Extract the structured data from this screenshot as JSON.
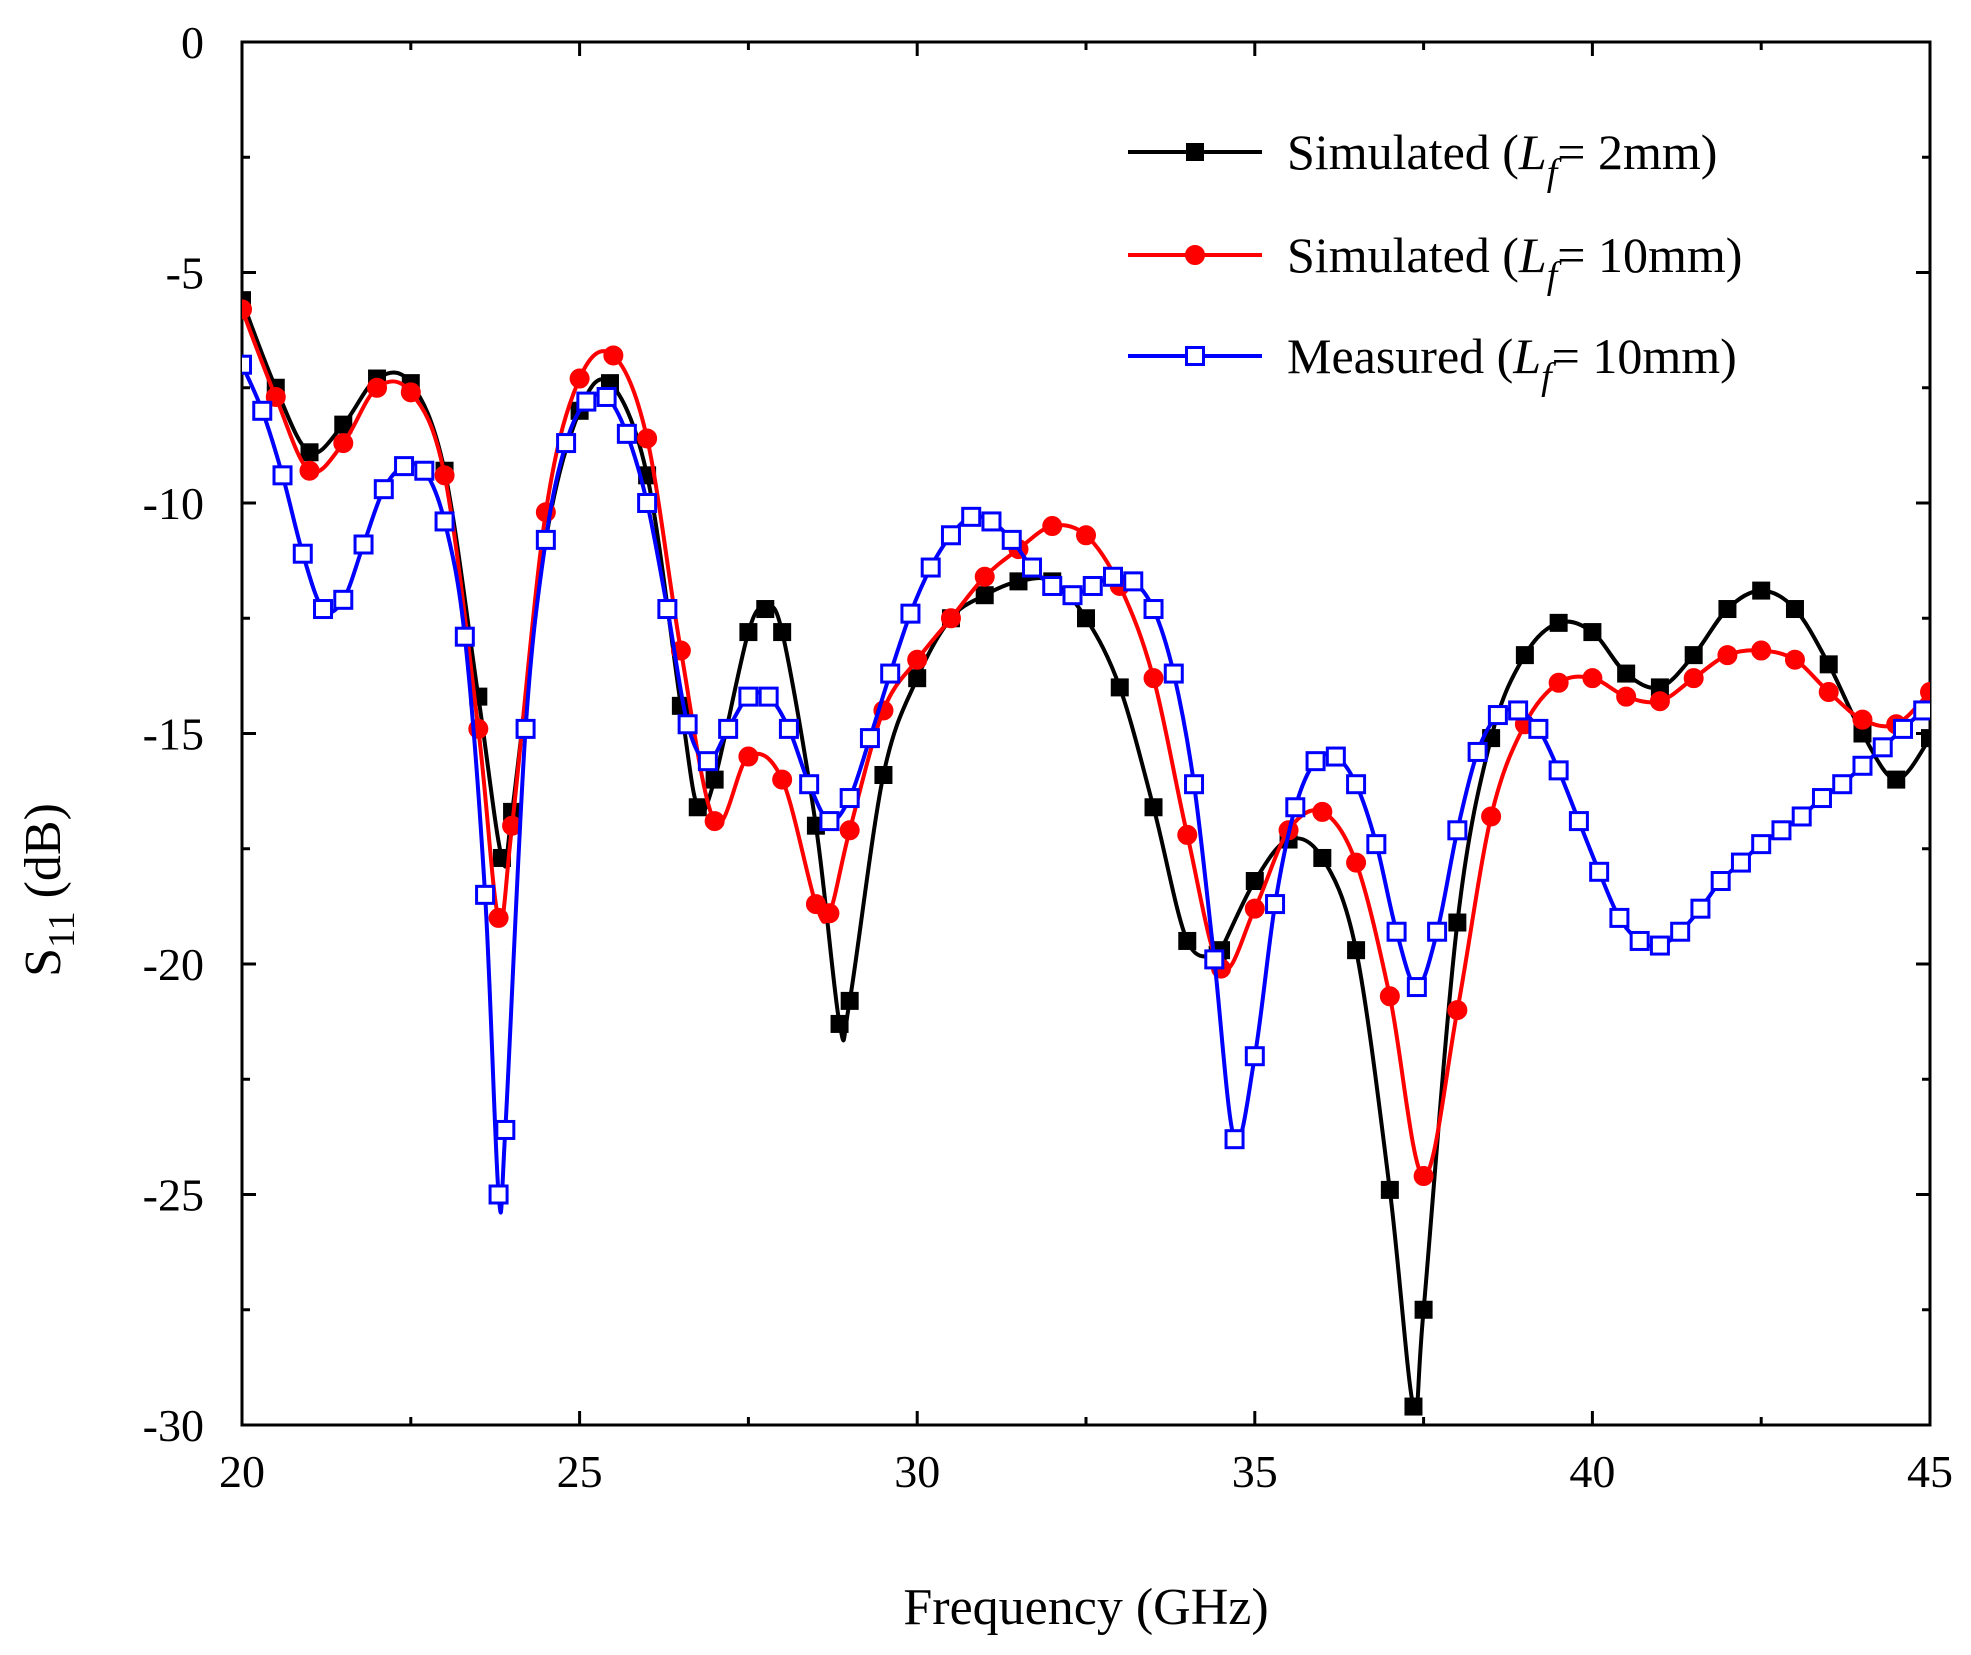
{
  "chart_data": {
    "type": "line",
    "title": "",
    "xlabel": "Frequency (GHz)",
    "ylabel_main": "S",
    "ylabel_sub": "11",
    "ylabel_unit": " (dB)",
    "xlim": [
      20,
      45
    ],
    "ylim": [
      -30,
      0
    ],
    "xticks": [
      20,
      25,
      30,
      35,
      40,
      45
    ],
    "yticks": [
      0,
      -5,
      -10,
      -15,
      -20,
      -25,
      -30
    ],
    "ytick_labels": [
      "0",
      "-5",
      "-10",
      "-15",
      "-20",
      "-25",
      "-30"
    ],
    "grid": false,
    "legend_position": "top-right",
    "series": [
      {
        "name": "Simulated (Lf= 2mm)",
        "legend": {
          "prefix": "Simulated (",
          "var": "L",
          "sub": "f",
          "suffix": "= 2mm)"
        },
        "color": "#000000",
        "marker": "square-filled",
        "x": [
          20.0,
          20.5,
          21.0,
          21.5,
          22.0,
          22.5,
          23.0,
          23.5,
          23.85,
          24.0,
          24.5,
          25.0,
          25.45,
          26.0,
          26.5,
          26.75,
          27.0,
          27.5,
          27.75,
          28.0,
          28.5,
          28.85,
          29.0,
          29.5,
          30.0,
          30.5,
          31.0,
          31.5,
          32.0,
          32.5,
          33.0,
          33.5,
          34.0,
          34.45,
          34.5,
          35.0,
          35.5,
          36.0,
          36.5,
          37.0,
          37.35,
          37.5,
          38.0,
          38.5,
          39.0,
          39.5,
          40.0,
          40.5,
          41.0,
          41.5,
          42.0,
          42.5,
          43.0,
          43.5,
          44.0,
          44.5,
          45.0
        ],
        "y": [
          -5.6,
          -7.5,
          -8.9,
          -8.3,
          -7.3,
          -7.4,
          -9.3,
          -14.2,
          -17.7,
          -16.7,
          -10.8,
          -8.0,
          -7.4,
          -9.4,
          -14.4,
          -16.6,
          -16.0,
          -12.8,
          -12.3,
          -12.8,
          -17.0,
          -21.3,
          -20.8,
          -15.9,
          -13.8,
          -12.5,
          -12.0,
          -11.7,
          -11.7,
          -12.5,
          -14.0,
          -16.6,
          -19.5,
          -19.8,
          -19.7,
          -18.2,
          -17.3,
          -17.7,
          -19.7,
          -24.9,
          -29.6,
          -27.5,
          -19.1,
          -15.1,
          -13.3,
          -12.6,
          -12.8,
          -13.7,
          -14.0,
          -13.3,
          -12.3,
          -11.9,
          -12.3,
          -13.5,
          -15.0,
          -16.0,
          -15.1
        ]
      },
      {
        "name": "Simulated (Lf= 10mm)",
        "legend": {
          "prefix": "Simulated (",
          "var": "L",
          "sub": "f",
          "suffix": "= 10mm)"
        },
        "color": "#ff0000",
        "marker": "circle-filled",
        "x": [
          20.0,
          20.5,
          21.0,
          21.5,
          22.0,
          22.5,
          23.0,
          23.5,
          23.8,
          24.0,
          24.5,
          25.0,
          25.5,
          26.0,
          26.5,
          27.0,
          27.5,
          28.0,
          28.5,
          28.7,
          29.0,
          29.5,
          30.0,
          30.5,
          31.0,
          31.5,
          32.0,
          32.5,
          33.0,
          33.5,
          34.0,
          34.5,
          35.0,
          35.5,
          36.0,
          36.5,
          37.0,
          37.5,
          38.0,
          38.5,
          39.0,
          39.5,
          40.0,
          40.5,
          41.0,
          41.5,
          42.0,
          42.5,
          43.0,
          43.5,
          44.0,
          44.5,
          45.0
        ],
        "y": [
          -5.8,
          -7.7,
          -9.3,
          -8.7,
          -7.5,
          -7.6,
          -9.4,
          -14.9,
          -19.0,
          -17.0,
          -10.2,
          -7.3,
          -6.8,
          -8.6,
          -13.2,
          -16.9,
          -15.5,
          -16.0,
          -18.7,
          -18.9,
          -17.1,
          -14.5,
          -13.4,
          -12.5,
          -11.6,
          -11.0,
          -10.5,
          -10.7,
          -11.8,
          -13.8,
          -17.2,
          -20.1,
          -18.8,
          -17.1,
          -16.7,
          -17.8,
          -20.7,
          -24.6,
          -21.0,
          -16.8,
          -14.8,
          -13.9,
          -13.8,
          -14.2,
          -14.3,
          -13.8,
          -13.3,
          -13.2,
          -13.4,
          -14.1,
          -14.7,
          -14.8,
          -14.1
        ]
      },
      {
        "name": "Measured (Lf= 10mm)",
        "legend": {
          "prefix": "Measured (",
          "var": "L",
          "sub": "f",
          "suffix": "= 10mm)"
        },
        "color": "#0000ff",
        "marker": "square-open",
        "x": [
          20.0,
          20.3,
          20.6,
          20.9,
          21.2,
          21.5,
          21.8,
          22.1,
          22.4,
          22.7,
          23.0,
          23.3,
          23.6,
          23.8,
          23.9,
          24.2,
          24.5,
          24.8,
          25.1,
          25.4,
          25.7,
          26.0,
          26.3,
          26.6,
          26.9,
          27.2,
          27.5,
          27.8,
          28.1,
          28.4,
          28.7,
          29.0,
          29.3,
          29.6,
          29.9,
          30.2,
          30.5,
          30.8,
          31.1,
          31.4,
          31.7,
          32.0,
          32.3,
          32.6,
          32.9,
          33.2,
          33.5,
          33.8,
          34.1,
          34.4,
          34.7,
          35.0,
          35.3,
          35.6,
          35.9,
          36.2,
          36.5,
          36.8,
          37.1,
          37.4,
          37.7,
          38.0,
          38.3,
          38.6,
          38.9,
          39.2,
          39.5,
          39.8,
          40.1,
          40.4,
          40.7,
          41.0,
          41.3,
          41.6,
          41.9,
          42.2,
          42.5,
          42.8,
          43.1,
          43.4,
          43.7,
          44.0,
          44.3,
          44.6,
          44.9
        ],
        "y": [
          -7.0,
          -8.0,
          -9.4,
          -11.1,
          -12.3,
          -12.1,
          -10.9,
          -9.7,
          -9.2,
          -9.3,
          -10.4,
          -12.9,
          -18.5,
          -25.0,
          -23.6,
          -14.9,
          -10.8,
          -8.7,
          -7.8,
          -7.7,
          -8.5,
          -10.0,
          -12.3,
          -14.8,
          -15.6,
          -14.9,
          -14.2,
          -14.2,
          -14.9,
          -16.1,
          -16.9,
          -16.4,
          -15.1,
          -13.7,
          -12.4,
          -11.4,
          -10.7,
          -10.3,
          -10.4,
          -10.8,
          -11.4,
          -11.8,
          -12.0,
          -11.8,
          -11.6,
          -11.7,
          -12.3,
          -13.7,
          -16.1,
          -19.9,
          -23.8,
          -22.0,
          -18.7,
          -16.6,
          -15.6,
          -15.5,
          -16.1,
          -17.4,
          -19.3,
          -20.5,
          -19.3,
          -17.1,
          -15.4,
          -14.6,
          -14.5,
          -14.9,
          -15.8,
          -16.9,
          -18.0,
          -19.0,
          -19.5,
          -19.6,
          -19.3,
          -18.8,
          -18.2,
          -17.8,
          -17.4,
          -17.1,
          -16.8,
          -16.4,
          -16.1,
          -15.7,
          -15.3,
          -14.9,
          -14.5
        ]
      }
    ]
  }
}
